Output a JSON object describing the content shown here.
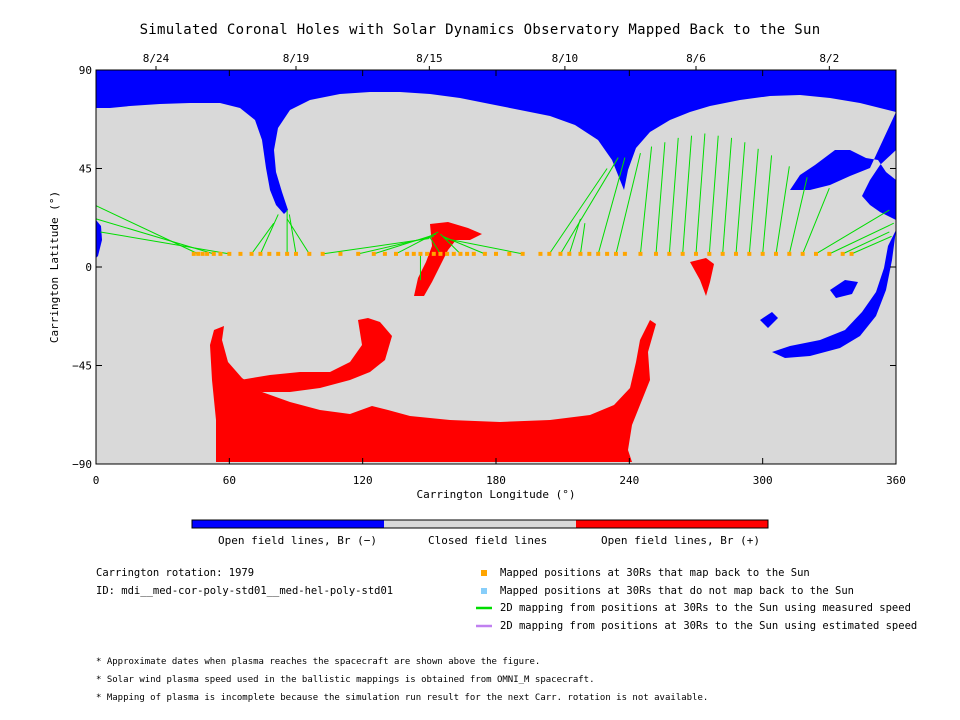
{
  "title": "Simulated Coronal Holes with Solar Dynamics Observatory Mapped Back to the Sun",
  "chart_data": {
    "type": "heatmap",
    "xlabel": "Carrington Longitude (°)",
    "ylabel": "Carrington Latitude (°)",
    "xlim": [
      0,
      360
    ],
    "ylim": [
      -90,
      90
    ],
    "x_ticks": [
      0,
      60,
      120,
      180,
      240,
      300,
      360
    ],
    "y_ticks": [
      -90,
      -45,
      0,
      45,
      90
    ],
    "y_tick_labels": [
      "−90",
      "−45",
      "0",
      "45",
      "90"
    ],
    "top_axis_dates": [
      {
        "label": "8/24",
        "lon": 27
      },
      {
        "label": "8/19",
        "lon": 90
      },
      {
        "label": "8/15",
        "lon": 150
      },
      {
        "label": "8/10",
        "lon": 211
      },
      {
        "label": "8/6",
        "lon": 270
      },
      {
        "label": "8/2",
        "lon": 330
      }
    ],
    "colorbar": [
      {
        "label": "Open field lines, Br (−)",
        "color": "#0000ff"
      },
      {
        "label": "Closed field lines",
        "color": "#d9d9d9"
      },
      {
        "label": "Open field lines, Br (+)",
        "color": "#ff0000"
      }
    ],
    "mapped_latitude": 6,
    "mapped_points_lon": [
      44,
      46,
      48,
      50,
      53,
      56,
      60,
      65,
      70,
      74,
      78,
      82,
      86,
      90,
      96,
      102,
      110,
      118,
      125,
      130,
      135,
      140,
      143,
      146,
      149,
      152,
      155,
      158,
      161,
      164,
      167,
      170,
      175,
      180,
      186,
      192,
      200,
      204,
      209,
      213,
      218,
      222,
      226,
      230,
      234,
      238,
      245,
      252,
      258,
      264,
      270,
      276,
      282,
      288,
      294,
      300,
      306,
      312,
      318,
      324,
      330,
      336,
      340
    ],
    "field_lines": [
      {
        "lon1": 46,
        "lat1": 6,
        "lon2": 0,
        "lat2": 28
      },
      {
        "lon1": 53,
        "lat1": 6,
        "lon2": 0,
        "lat2": 22
      },
      {
        "lon1": 60,
        "lat1": 6,
        "lon2": 2,
        "lat2": 16
      },
      {
        "lon1": 70,
        "lat1": 6,
        "lon2": 80,
        "lat2": 20
      },
      {
        "lon1": 74,
        "lat1": 6,
        "lon2": 82,
        "lat2": 24
      },
      {
        "lon1": 86,
        "lat1": 6,
        "lon2": 86,
        "lat2": 26
      },
      {
        "lon1": 90,
        "lat1": 6,
        "lon2": 87,
        "lat2": 24
      },
      {
        "lon1": 96,
        "lat1": 6,
        "lon2": 86,
        "lat2": 22
      },
      {
        "lon1": 102,
        "lat1": 6,
        "lon2": 150,
        "lat2": 13
      },
      {
        "lon1": 118,
        "lat1": 6,
        "lon2": 152,
        "lat2": 14
      },
      {
        "lon1": 125,
        "lat1": 6,
        "lon2": 153,
        "lat2": 15
      },
      {
        "lon1": 135,
        "lat1": 6,
        "lon2": 154,
        "lat2": 16
      },
      {
        "lon1": 146,
        "lat1": 6,
        "lon2": 146,
        "lat2": -6
      },
      {
        "lon1": 155,
        "lat1": 6,
        "lon2": 150,
        "lat2": 14
      },
      {
        "lon1": 164,
        "lat1": 6,
        "lon2": 155,
        "lat2": 15
      },
      {
        "lon1": 175,
        "lat1": 6,
        "lon2": 156,
        "lat2": 14
      },
      {
        "lon1": 192,
        "lat1": 6,
        "lon2": 157,
        "lat2": 13
      },
      {
        "lon1": 204,
        "lat1": 6,
        "lon2": 230,
        "lat2": 45
      },
      {
        "lon1": 209,
        "lat1": 6,
        "lon2": 235,
        "lat2": 50
      },
      {
        "lon1": 213,
        "lat1": 6,
        "lon2": 218,
        "lat2": 22
      },
      {
        "lon1": 218,
        "lat1": 6,
        "lon2": 220,
        "lat2": 20
      },
      {
        "lon1": 226,
        "lat1": 6,
        "lon2": 238,
        "lat2": 50
      },
      {
        "lon1": 234,
        "lat1": 6,
        "lon2": 245,
        "lat2": 52
      },
      {
        "lon1": 245,
        "lat1": 6,
        "lon2": 250,
        "lat2": 55
      },
      {
        "lon1": 252,
        "lat1": 6,
        "lon2": 256,
        "lat2": 57
      },
      {
        "lon1": 258,
        "lat1": 6,
        "lon2": 262,
        "lat2": 59
      },
      {
        "lon1": 264,
        "lat1": 6,
        "lon2": 268,
        "lat2": 60
      },
      {
        "lon1": 270,
        "lat1": 6,
        "lon2": 274,
        "lat2": 61
      },
      {
        "lon1": 276,
        "lat1": 6,
        "lon2": 280,
        "lat2": 60
      },
      {
        "lon1": 282,
        "lat1": 6,
        "lon2": 286,
        "lat2": 59
      },
      {
        "lon1": 288,
        "lat1": 6,
        "lon2": 292,
        "lat2": 57
      },
      {
        "lon1": 294,
        "lat1": 6,
        "lon2": 298,
        "lat2": 54
      },
      {
        "lon1": 300,
        "lat1": 6,
        "lon2": 304,
        "lat2": 51
      },
      {
        "lon1": 306,
        "lat1": 6,
        "lon2": 312,
        "lat2": 46
      },
      {
        "lon1": 312,
        "lat1": 6,
        "lon2": 320,
        "lat2": 41
      },
      {
        "lon1": 318,
        "lat1": 6,
        "lon2": 330,
        "lat2": 36
      },
      {
        "lon1": 324,
        "lat1": 6,
        "lon2": 357,
        "lat2": 26
      },
      {
        "lon1": 330,
        "lat1": 6,
        "lon2": 359,
        "lat2": 20
      },
      {
        "lon1": 336,
        "lat1": 6,
        "lon2": 357,
        "lat2": 16
      },
      {
        "lon1": 340,
        "lat1": 6,
        "lon2": 358,
        "lat2": 14
      }
    ]
  },
  "info": {
    "rotation": "Carrington rotation: 1979",
    "id": "ID: mdi__med-cor-poly-std01__med-hel-poly-std01"
  },
  "legend": [
    {
      "label": "Mapped positions at 30Rs that map back to the Sun",
      "color": "#ffa500",
      "kind": "square"
    },
    {
      "label": "Mapped positions at 30Rs that do not map back to the Sun",
      "color": "#87cefa",
      "kind": "square"
    },
    {
      "label": "2D mapping from positions at 30Rs to the Sun using measured speed",
      "color": "#00dd00",
      "kind": "line"
    },
    {
      "label": "2D mapping from positions at 30Rs to the Sun using estimated speed",
      "color": "#c080f0",
      "kind": "line"
    }
  ],
  "footnotes": [
    "* Approximate dates when plasma reaches the spacecraft are shown above the figure.",
    "* Solar wind plasma speed used in the ballistic mappings is obtained from OMNI_M spacecraft.",
    "* Mapping of plasma is incomplete because the simulation run result for the next Carr. rotation is not available."
  ]
}
